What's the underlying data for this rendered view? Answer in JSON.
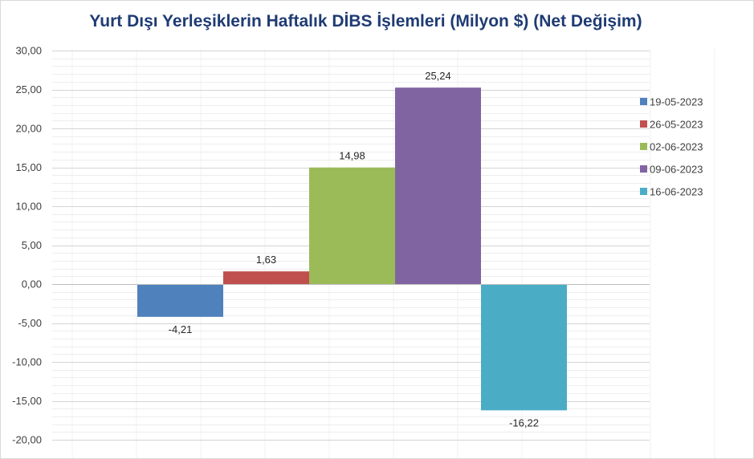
{
  "chart_data": {
    "type": "bar",
    "title": "Yurt Dışı Yerleşiklerin Haftalık DİBS İşlemleri (Milyon $) (Net Değişim)",
    "xlabel": "",
    "ylabel": "",
    "ylim": [
      -20,
      30
    ],
    "yticks": [
      30,
      25,
      20,
      15,
      10,
      5,
      0,
      -5,
      -10,
      -15,
      -20
    ],
    "ytick_labels": [
      "30,00",
      "25,00",
      "20,00",
      "15,00",
      "10,00",
      "5,00",
      "0,00",
      "-5,00",
      "-10,00",
      "-15,00",
      "-20,00"
    ],
    "grid": true,
    "legend_position": "right",
    "series": [
      {
        "name": "19-05-2023",
        "value": -4.21,
        "label": "-4,21",
        "color": "#4f81bd"
      },
      {
        "name": "26-05-2023",
        "value": 1.63,
        "label": "1,63",
        "color": "#c0504d"
      },
      {
        "name": "02-06-2023",
        "value": 14.98,
        "label": "14,98",
        "color": "#9bbb59"
      },
      {
        "name": "09-06-2023",
        "value": 25.24,
        "label": "25,24",
        "color": "#8064a2"
      },
      {
        "name": "16-06-2023",
        "value": -16.22,
        "label": "-16,22",
        "color": "#4bacc6"
      }
    ]
  }
}
